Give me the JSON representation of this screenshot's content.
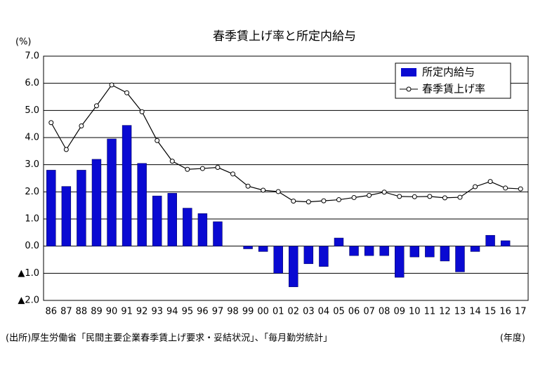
{
  "chart_data": {
    "type": "bar_line",
    "title": "春季賃上げ率と所定内給与",
    "y_label": "(%)",
    "x_label": "(年度)",
    "source": "(出所)厚生労働省「民間主要企業春季賃上げ要求・妥結状況」、「毎月勤労統計」",
    "categories": [
      "86",
      "87",
      "88",
      "89",
      "90",
      "91",
      "92",
      "93",
      "94",
      "95",
      "96",
      "97",
      "98",
      "99",
      "00",
      "01",
      "02",
      "03",
      "04",
      "05",
      "06",
      "07",
      "08",
      "09",
      "10",
      "11",
      "12",
      "13",
      "14",
      "15",
      "16",
      "17"
    ],
    "series": [
      {
        "name": "所定内給与",
        "kind": "bar",
        "color": "#0a0ad2",
        "values": [
          2.8,
          2.2,
          2.8,
          3.2,
          3.95,
          4.45,
          3.05,
          1.85,
          1.95,
          1.4,
          1.2,
          0.9,
          0,
          -0.1,
          -0.2,
          -1.0,
          -1.5,
          -0.65,
          -0.75,
          0.3,
          -0.35,
          -0.35,
          -0.35,
          -1.15,
          -0.4,
          -0.4,
          -0.55,
          -0.95,
          -0.2,
          0.4,
          0.2,
          null
        ]
      },
      {
        "name": "春季賃上げ率",
        "kind": "line",
        "color": "#000000",
        "values": [
          4.55,
          3.56,
          4.43,
          5.17,
          5.94,
          5.65,
          4.95,
          3.89,
          3.13,
          2.83,
          2.86,
          2.9,
          2.66,
          2.21,
          2.06,
          2.01,
          1.66,
          1.63,
          1.67,
          1.71,
          1.79,
          1.87,
          1.99,
          1.83,
          1.82,
          1.83,
          1.78,
          1.8,
          2.19,
          2.38,
          2.14,
          2.11
        ]
      }
    ],
    "ylim": [
      -2,
      7
    ],
    "yticks": [
      {
        "value": 7,
        "label": "7.0"
      },
      {
        "value": 6,
        "label": "6.0"
      },
      {
        "value": 5,
        "label": "5.0"
      },
      {
        "value": 4,
        "label": "4.0"
      },
      {
        "value": 3,
        "label": "3.0"
      },
      {
        "value": 2,
        "label": "2.0"
      },
      {
        "value": 1,
        "label": "1.0"
      },
      {
        "value": 0,
        "label": "0.0"
      },
      {
        "value": -1,
        "label": "▲1.0"
      },
      {
        "value": -2,
        "label": "▲2.0"
      }
    ],
    "grid": true,
    "legend": "upper right"
  }
}
